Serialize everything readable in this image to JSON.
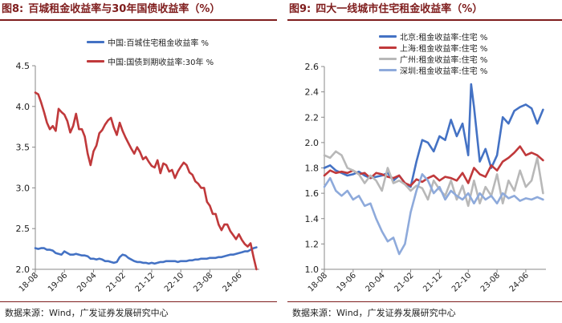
{
  "figures": [
    {
      "fig_num": "图8:",
      "title": "百城租金收益率与30年国债收益率（%）",
      "source": "数据来源：Wind，广发证券发展研究中心"
    },
    {
      "fig_num": "图9:",
      "title": "四大一线城市住宅租金收益率（%）",
      "source": "数据来源：Wind，广发证券发展研究中心"
    }
  ],
  "chart_data": [
    {
      "type": "line",
      "title": "",
      "xlabel": "",
      "ylabel": "",
      "x_ticks": [
        "18-08",
        "19-06",
        "20-04",
        "21-02",
        "21-12",
        "22-10",
        "23-08",
        "24-06"
      ],
      "x_start": "2018-08",
      "x_end": "2025-01",
      "y_ticks": [
        "2.0",
        "2.5",
        "3.0",
        "3.5",
        "4.0",
        "4.5"
      ],
      "ylim": [
        2.0,
        4.5
      ],
      "grid": false,
      "legend": "top-left",
      "series": [
        {
          "name": "中国:百城住宅租金收益率 %",
          "color": "#4472c4",
          "x": [
            "2018-08",
            "2018-09",
            "2018-10",
            "2018-11",
            "2018-12",
            "2019-01",
            "2019-02",
            "2019-03",
            "2019-04",
            "2019-05",
            "2019-06",
            "2019-07",
            "2019-08",
            "2019-09",
            "2019-10",
            "2019-11",
            "2019-12",
            "2020-01",
            "2020-02",
            "2020-03",
            "2020-04",
            "2020-05",
            "2020-06",
            "2020-07",
            "2020-08",
            "2020-09",
            "2020-10",
            "2020-11",
            "2020-12",
            "2021-01",
            "2021-02",
            "2021-03",
            "2021-04",
            "2021-05",
            "2021-06",
            "2021-07",
            "2021-08",
            "2021-09",
            "2021-10",
            "2021-11",
            "2021-12",
            "2022-01",
            "2022-02",
            "2022-03",
            "2022-04",
            "2022-05",
            "2022-06",
            "2022-07",
            "2022-08",
            "2022-09",
            "2022-10",
            "2022-11",
            "2022-12",
            "2023-01",
            "2023-02",
            "2023-03",
            "2023-04",
            "2023-05",
            "2023-06",
            "2023-07",
            "2023-08",
            "2023-09",
            "2023-10",
            "2023-11",
            "2023-12",
            "2024-01",
            "2024-02",
            "2024-03",
            "2024-04",
            "2024-05",
            "2024-06",
            "2024-07",
            "2024-08",
            "2024-09",
            "2024-10",
            "2024-11",
            "2024-12"
          ],
          "values": [
            2.26,
            2.25,
            2.26,
            2.26,
            2.24,
            2.24,
            2.23,
            2.2,
            2.19,
            2.18,
            2.22,
            2.2,
            2.18,
            2.18,
            2.19,
            2.18,
            2.17,
            2.17,
            2.16,
            2.13,
            2.13,
            2.12,
            2.13,
            2.12,
            2.1,
            2.1,
            2.09,
            2.08,
            2.09,
            2.15,
            2.18,
            2.17,
            2.14,
            2.12,
            2.1,
            2.09,
            2.09,
            2.08,
            2.08,
            2.07,
            2.08,
            2.07,
            2.08,
            2.09,
            2.09,
            2.1,
            2.1,
            2.1,
            2.1,
            2.09,
            2.1,
            2.1,
            2.1,
            2.11,
            2.11,
            2.12,
            2.12,
            2.13,
            2.13,
            2.13,
            2.14,
            2.14,
            2.14,
            2.15,
            2.15,
            2.16,
            2.17,
            2.18,
            2.18,
            2.19,
            2.2,
            2.21,
            2.22,
            2.22,
            2.24,
            2.26,
            2.27
          ]
        },
        {
          "name": "中国:国债到期收益率:30年 %",
          "color": "#c0393b",
          "x": [
            "2018-08",
            "2018-09",
            "2018-10",
            "2018-11",
            "2018-12",
            "2019-01",
            "2019-02",
            "2019-03",
            "2019-04",
            "2019-05",
            "2019-06",
            "2019-07",
            "2019-08",
            "2019-09",
            "2019-10",
            "2019-11",
            "2019-12",
            "2020-01",
            "2020-02",
            "2020-03",
            "2020-04",
            "2020-05",
            "2020-06",
            "2020-07",
            "2020-08",
            "2020-09",
            "2020-10",
            "2020-11",
            "2020-12",
            "2021-01",
            "2021-02",
            "2021-03",
            "2021-04",
            "2021-05",
            "2021-06",
            "2021-07",
            "2021-08",
            "2021-09",
            "2021-10",
            "2021-11",
            "2021-12",
            "2022-01",
            "2022-02",
            "2022-03",
            "2022-04",
            "2022-05",
            "2022-06",
            "2022-07",
            "2022-08",
            "2022-09",
            "2022-10",
            "2022-11",
            "2022-12",
            "2023-01",
            "2023-02",
            "2023-03",
            "2023-04",
            "2023-05",
            "2023-06",
            "2023-07",
            "2023-08",
            "2023-09",
            "2023-10",
            "2023-11",
            "2023-12",
            "2024-01",
            "2024-02",
            "2024-03",
            "2024-04",
            "2024-05",
            "2024-06",
            "2024-07",
            "2024-08",
            "2024-09",
            "2024-10",
            "2024-11",
            "2024-12"
          ],
          "values": [
            4.17,
            4.15,
            4.05,
            3.93,
            3.8,
            3.72,
            3.76,
            3.7,
            3.97,
            3.93,
            3.9,
            3.82,
            3.68,
            3.76,
            3.91,
            3.72,
            3.72,
            3.63,
            3.42,
            3.28,
            3.45,
            3.52,
            3.67,
            3.71,
            3.78,
            3.83,
            3.86,
            3.74,
            3.65,
            3.8,
            3.7,
            3.62,
            3.55,
            3.48,
            3.42,
            3.5,
            3.44,
            3.35,
            3.38,
            3.32,
            3.27,
            3.25,
            3.34,
            3.18,
            3.3,
            3.28,
            3.2,
            3.22,
            3.12,
            3.2,
            3.26,
            3.31,
            3.28,
            3.19,
            3.16,
            3.08,
            3.05,
            3.0,
            3.0,
            2.83,
            2.78,
            2.68,
            2.68,
            2.55,
            2.48,
            2.55,
            2.55,
            2.47,
            2.42,
            2.37,
            2.43,
            2.36,
            2.31,
            2.28,
            2.32,
            2.15,
            2.0
          ]
        }
      ]
    },
    {
      "type": "line",
      "title": "",
      "xlabel": "",
      "ylabel": "",
      "x_ticks": [
        "18-08",
        "19-06",
        "20-04",
        "21-02",
        "21-12",
        "22-10",
        "23-08",
        "24-06"
      ],
      "x_start": "2018-08",
      "x_end": "2025-01",
      "y_ticks": [
        "1.0",
        "1.2",
        "1.4",
        "1.6",
        "1.8",
        "2.0",
        "2.2",
        "2.4",
        "2.6"
      ],
      "ylim": [
        1.0,
        2.6
      ],
      "grid": false,
      "legend": "top-left",
      "series": [
        {
          "name": "北京:租金收益率:住宅 %",
          "color": "#4472c4",
          "x": [
            "2018-08",
            "2018-10",
            "2018-12",
            "2019-02",
            "2019-04",
            "2019-06",
            "2019-08",
            "2019-10",
            "2019-12",
            "2020-02",
            "2020-04",
            "2020-06",
            "2020-08",
            "2020-10",
            "2020-12",
            "2021-02",
            "2021-04",
            "2021-06",
            "2021-08",
            "2021-10",
            "2021-12",
            "2022-02",
            "2022-04",
            "2022-06",
            "2022-08",
            "2022-10",
            "2022-11",
            "2022-12",
            "2023-02",
            "2023-04",
            "2023-06",
            "2023-08",
            "2023-10",
            "2023-12",
            "2024-02",
            "2024-04",
            "2024-06",
            "2024-08",
            "2024-10",
            "2024-12"
          ],
          "values": [
            1.8,
            1.82,
            1.78,
            1.76,
            1.74,
            1.75,
            1.77,
            1.74,
            1.72,
            1.73,
            1.74,
            1.76,
            1.7,
            1.74,
            1.68,
            1.65,
            1.85,
            2.02,
            2.0,
            1.93,
            2.05,
            2.02,
            2.18,
            2.05,
            2.15,
            1.9,
            2.46,
            2.28,
            1.85,
            1.95,
            1.8,
            1.9,
            2.2,
            2.15,
            2.25,
            2.28,
            2.3,
            2.27,
            2.15,
            2.26
          ]
        },
        {
          "name": "上海:租金收益率:住宅 %",
          "color": "#c0393b",
          "x": [
            "2018-08",
            "2018-10",
            "2018-12",
            "2019-02",
            "2019-04",
            "2019-06",
            "2019-08",
            "2019-10",
            "2019-12",
            "2020-02",
            "2020-04",
            "2020-06",
            "2020-08",
            "2020-10",
            "2020-12",
            "2021-02",
            "2021-04",
            "2021-06",
            "2021-08",
            "2021-10",
            "2021-12",
            "2022-02",
            "2022-04",
            "2022-06",
            "2022-08",
            "2022-10",
            "2022-12",
            "2023-02",
            "2023-04",
            "2023-06",
            "2023-08",
            "2023-10",
            "2023-12",
            "2024-02",
            "2024-04",
            "2024-06",
            "2024-08",
            "2024-10",
            "2024-12"
          ],
          "values": [
            1.74,
            1.78,
            1.76,
            1.77,
            1.76,
            1.78,
            1.75,
            1.76,
            1.72,
            1.76,
            1.75,
            1.73,
            1.72,
            1.74,
            1.68,
            1.66,
            1.71,
            1.69,
            1.72,
            1.74,
            1.7,
            1.73,
            1.72,
            1.7,
            1.76,
            1.68,
            1.8,
            1.75,
            1.73,
            1.82,
            1.78,
            1.85,
            1.88,
            1.92,
            1.97,
            1.9,
            1.92,
            1.9,
            1.86
          ]
        },
        {
          "name": "广州:租金收益率:住宅 %",
          "color": "#b8b8b8",
          "x": [
            "2018-08",
            "2018-10",
            "2018-12",
            "2019-02",
            "2019-04",
            "2019-06",
            "2019-08",
            "2019-10",
            "2019-12",
            "2020-02",
            "2020-04",
            "2020-06",
            "2020-08",
            "2020-10",
            "2020-12",
            "2021-02",
            "2021-04",
            "2021-06",
            "2021-08",
            "2021-10",
            "2021-12",
            "2022-02",
            "2022-04",
            "2022-06",
            "2022-08",
            "2022-10",
            "2022-12",
            "2023-02",
            "2023-04",
            "2023-06",
            "2023-08",
            "2023-10",
            "2023-12",
            "2024-02",
            "2024-04",
            "2024-06",
            "2024-08",
            "2024-10",
            "2024-12"
          ],
          "values": [
            1.9,
            1.88,
            1.93,
            1.9,
            1.8,
            1.78,
            1.75,
            1.68,
            1.74,
            1.7,
            1.62,
            1.8,
            1.68,
            1.7,
            1.67,
            1.62,
            1.66,
            1.64,
            1.55,
            1.7,
            1.63,
            1.58,
            1.7,
            1.55,
            1.66,
            1.5,
            1.7,
            1.52,
            1.65,
            1.58,
            1.75,
            1.52,
            1.7,
            1.62,
            1.78,
            1.65,
            1.7,
            1.88,
            1.6
          ]
        },
        {
          "name": "深圳:租金收益率:住宅 %",
          "color": "#8eaadb",
          "x": [
            "2018-08",
            "2018-10",
            "2018-12",
            "2019-02",
            "2019-04",
            "2019-06",
            "2019-08",
            "2019-10",
            "2019-12",
            "2020-02",
            "2020-04",
            "2020-06",
            "2020-08",
            "2020-10",
            "2020-12",
            "2021-02",
            "2021-04",
            "2021-06",
            "2021-08",
            "2021-10",
            "2021-12",
            "2022-02",
            "2022-04",
            "2022-06",
            "2022-08",
            "2022-10",
            "2022-12",
            "2023-02",
            "2023-04",
            "2023-06",
            "2023-08",
            "2023-10",
            "2023-12",
            "2024-02",
            "2024-04",
            "2024-06",
            "2024-08",
            "2024-10",
            "2024-12"
          ],
          "values": [
            1.65,
            1.72,
            1.62,
            1.58,
            1.62,
            1.55,
            1.58,
            1.5,
            1.52,
            1.4,
            1.3,
            1.22,
            1.25,
            1.12,
            1.2,
            1.45,
            1.62,
            1.75,
            1.7,
            1.6,
            1.65,
            1.55,
            1.62,
            1.58,
            1.55,
            1.6,
            1.52,
            1.6,
            1.55,
            1.58,
            1.52,
            1.6,
            1.56,
            1.58,
            1.54,
            1.56,
            1.55,
            1.57,
            1.55
          ]
        }
      ]
    }
  ]
}
